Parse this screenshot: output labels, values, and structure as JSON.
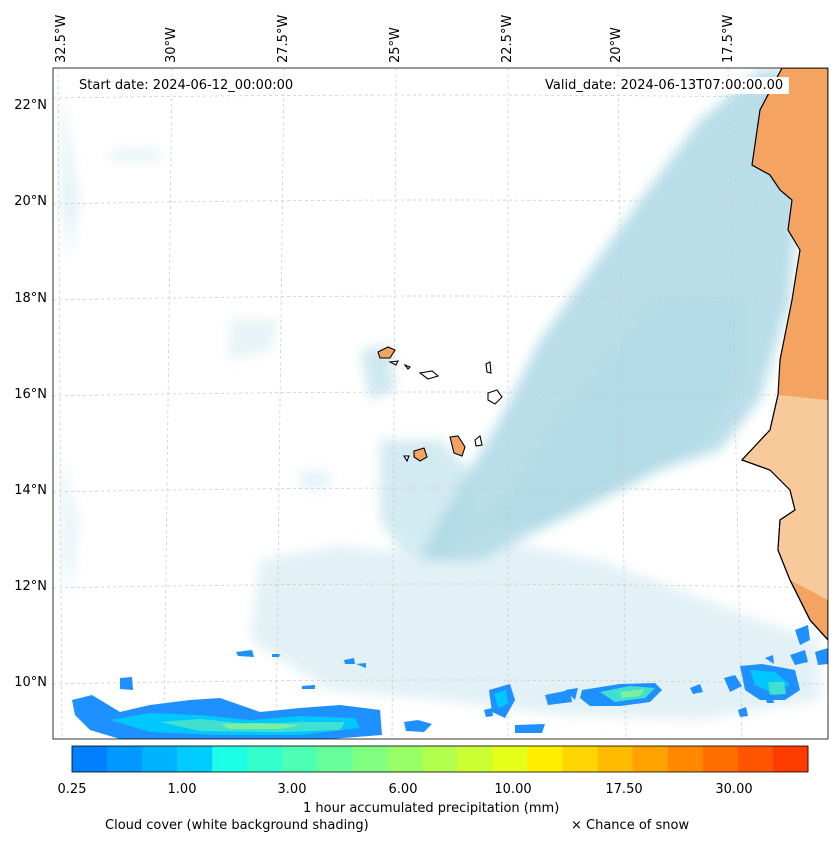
{
  "map": {
    "start_date": "Start date: 2024-06-12_00:00:00",
    "valid_date": "Valid_date: 2024-06-13T07:00:00.00",
    "longitude_labels": [
      "32.5°W",
      "30°W",
      "27.5°W",
      "25°W",
      "22.5°W",
      "20°W",
      "17.5°W"
    ],
    "latitude_labels": [
      "22°N",
      "20°N",
      "18°N",
      "16°N",
      "14°N",
      "12°N",
      "10°N"
    ],
    "colors": {
      "land": "#f4a460",
      "land_light": "#f8c99a",
      "cloud": "#add8e6",
      "precip_low": "#1e90ff",
      "precip_mid": "#40e0d0",
      "precip_high": "#7cfc00"
    }
  },
  "colorbar": {
    "title": "1 hour accumulated precipitation (mm)",
    "tick_labels": [
      "0.25",
      "1.00",
      "3.00",
      "6.00",
      "10.00",
      "17.50",
      "30.00"
    ],
    "colors": [
      "#0080ff",
      "#0099ff",
      "#00b3ff",
      "#00ccff",
      "#1affe6",
      "#33ffcc",
      "#4dffb3",
      "#66ff99",
      "#80ff80",
      "#99ff66",
      "#b3ff4d",
      "#ccff33",
      "#e6ff1a",
      "#ffee00",
      "#ffd500",
      "#ffbb00",
      "#ffa200",
      "#ff8800",
      "#ff6f00",
      "#ff5500",
      "#ff3c00"
    ]
  },
  "legend": {
    "cloud_cover": "Cloud cover (white background shading)",
    "snow": "× Chance of snow"
  }
}
